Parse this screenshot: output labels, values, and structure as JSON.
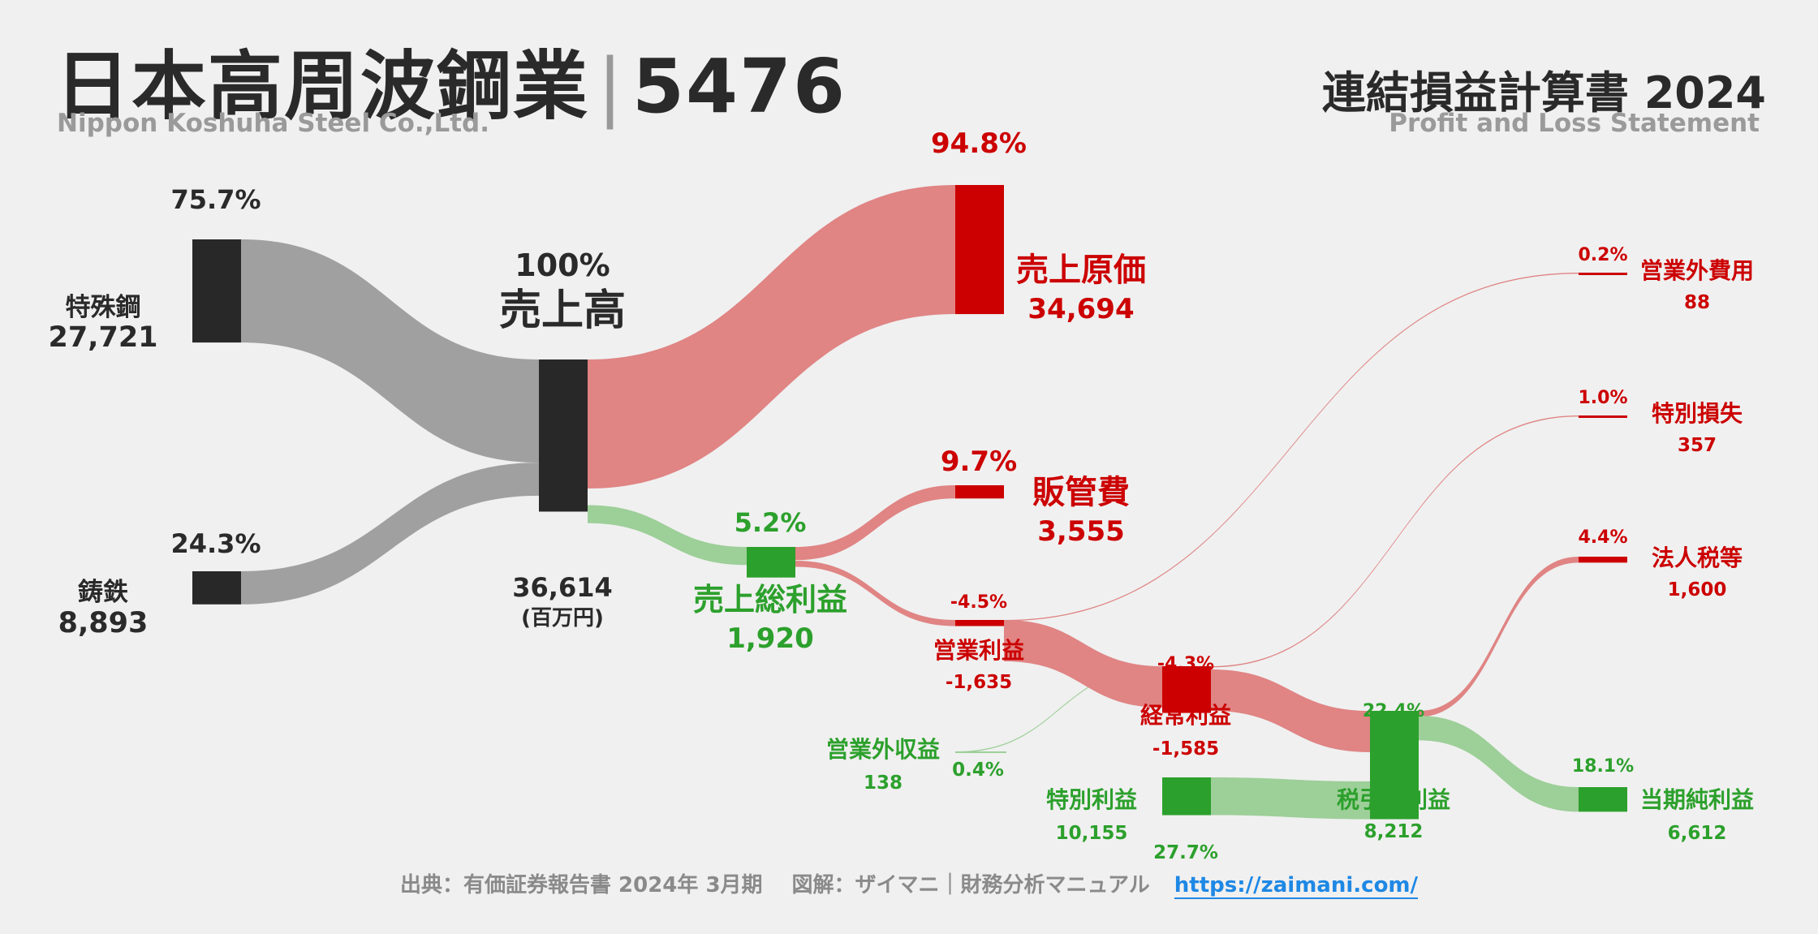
{
  "header": {
    "title": "日本高周波鋼業",
    "code": "5476",
    "subtitle": "Nippon Koshuha Steel Co.,Ltd.",
    "statement_title": "連結損益計算書 2024",
    "statement_subtitle": "Profit and Loss Statement"
  },
  "colors": {
    "black": "#282828",
    "gray": "#a0a0a0",
    "red": "#cc0000",
    "light_red": "#e08484",
    "green": "#2ca02c",
    "light_green": "#9dcf98"
  },
  "chart_data": {
    "type": "sankey",
    "unit": "(百万円)",
    "nodes": [
      {
        "id": "tokushuko",
        "name": "特殊鋼",
        "value": "27,721",
        "pct": "75.7%"
      },
      {
        "id": "chutetsu",
        "name": "鋳鉄",
        "value": "8,893",
        "pct": "24.3%"
      },
      {
        "id": "revenue",
        "name": "売上高",
        "value": "36,614",
        "pct": "100%"
      },
      {
        "id": "cogs",
        "name": "売上原価",
        "value": "34,694",
        "pct": "94.8%"
      },
      {
        "id": "gross",
        "name": "売上総利益",
        "value": "1,920",
        "pct": "5.2%"
      },
      {
        "id": "sga",
        "name": "販管費",
        "value": "3,555",
        "pct": "9.7%"
      },
      {
        "id": "opinc",
        "name": "営業利益",
        "value": "-1,635",
        "pct": "-4.5%"
      },
      {
        "id": "nonopinc",
        "name": "営業外収益",
        "value": "138",
        "pct": "0.4%"
      },
      {
        "id": "nonopexp",
        "name": "営業外費用",
        "value": "88",
        "pct": "0.2%"
      },
      {
        "id": "ordinc",
        "name": "経常利益",
        "value": "-1,585",
        "pct": "-4.3%"
      },
      {
        "id": "extinc",
        "name": "特別利益",
        "value": "10,155",
        "pct": "27.7%"
      },
      {
        "id": "extloss",
        "name": "特別損失",
        "value": "357",
        "pct": "1.0%"
      },
      {
        "id": "pretax",
        "name": "税引前利益",
        "value": "8,212",
        "pct": "22.4%"
      },
      {
        "id": "tax",
        "name": "法人税等",
        "value": "1,600",
        "pct": "4.4%"
      },
      {
        "id": "netinc",
        "name": "当期純利益",
        "value": "6,612",
        "pct": "18.1%"
      }
    ],
    "links": [
      {
        "source": "tokushuko",
        "target": "revenue",
        "value": 27721
      },
      {
        "source": "chutetsu",
        "target": "revenue",
        "value": 8893
      },
      {
        "source": "revenue",
        "target": "cogs",
        "value": 34694
      },
      {
        "source": "revenue",
        "target": "gross",
        "value": 1920
      },
      {
        "source": "gross",
        "target": "sga",
        "value": 3555
      },
      {
        "source": "gross",
        "target": "opinc",
        "value": 1635
      },
      {
        "source": "opinc",
        "target": "nonopexp",
        "value": 88
      },
      {
        "source": "nonopinc",
        "target": "ordinc",
        "value": 138
      },
      {
        "source": "opinc",
        "target": "ordinc",
        "value": 1585
      },
      {
        "source": "ordinc",
        "target": "extloss",
        "value": 357
      },
      {
        "source": "ordinc",
        "target": "pretax",
        "value": 1585
      },
      {
        "source": "extinc",
        "target": "pretax",
        "value": 10155
      },
      {
        "source": "pretax",
        "target": "tax",
        "value": 1600
      },
      {
        "source": "pretax",
        "target": "netinc",
        "value": 6612
      }
    ]
  },
  "footer": {
    "source": "出典：有価証券報告書 2024年 3月期",
    "credit": "図解：ザイマニ｜財務分析マニュアル",
    "url": "https://zaimani.com/"
  }
}
